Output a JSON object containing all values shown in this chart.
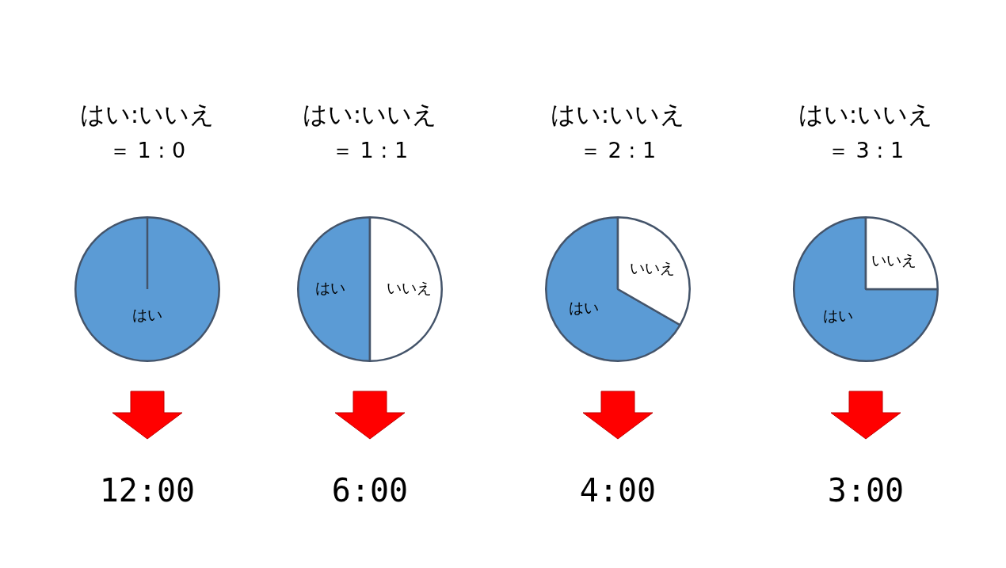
{
  "chart_data": [
    {
      "type": "pie",
      "title": "はい:いいえ",
      "subtitle": "＝ 1 : 0",
      "categories": [
        "はい",
        null
      ],
      "values": [
        100,
        0
      ],
      "colors": [
        "#5b9bd5",
        "#ffffff"
      ],
      "annotations": [
        "12:00"
      ]
    },
    {
      "type": "pie",
      "title": "はい:いいえ",
      "subtitle": "＝ 1 : 1",
      "categories": [
        "はい",
        "いいえ"
      ],
      "values": [
        50,
        50
      ],
      "colors": [
        "#5b9bd5",
        "#ffffff"
      ],
      "annotations": [
        "6:00"
      ]
    },
    {
      "type": "pie",
      "title": "はい:いいえ",
      "subtitle": "＝ 2 : 1",
      "categories": [
        "はい",
        "いいえ"
      ],
      "values": [
        66.7,
        33.3
      ],
      "colors": [
        "#5b9bd5",
        "#ffffff"
      ],
      "annotations": [
        "4:00"
      ]
    },
    {
      "type": "pie",
      "title": "はい:いいえ",
      "subtitle": "＝ 3 : 1",
      "categories": [
        "はい",
        "いいえ"
      ],
      "values": [
        75,
        25
      ],
      "colors": [
        "#5b9bd5",
        "#ffffff"
      ],
      "annotations": [
        "3:00"
      ]
    }
  ]
}
